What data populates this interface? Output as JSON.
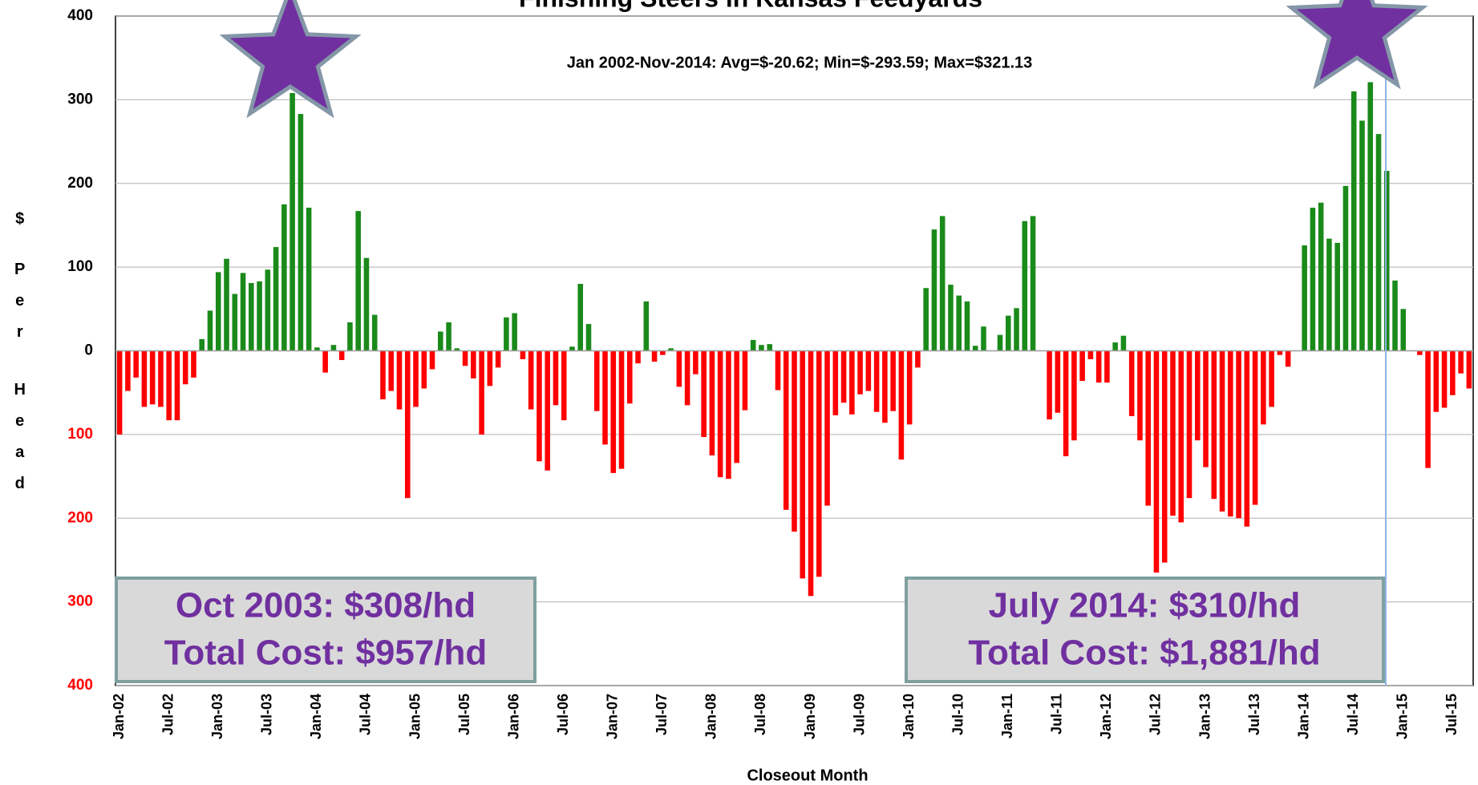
{
  "chart_data": {
    "type": "bar",
    "title": "Finishing Steers in Kansas Feedyards",
    "subtitle": "Jan 2002-Nov-2014:  Avg=$-20.62; Min=$-293.59; Max=$321.13",
    "xlabel": "Closeout Month",
    "ylabel": [
      "$",
      "Per",
      "Head"
    ],
    "annotations": [
      "Oct 2003: $308/hd",
      "Total Cost: $957/hd",
      "July 2014: $310/hd",
      "Total Cost: $1,881/hd"
    ],
    "categories": [
      "Jan-02",
      null,
      null,
      null,
      null,
      null,
      "Jul-02",
      null,
      null,
      null,
      null,
      null,
      "Jan-03",
      null,
      null,
      null,
      null,
      null,
      "Jul-03",
      null,
      null,
      null,
      null,
      null,
      "Jan-04",
      null,
      null,
      null,
      null,
      null,
      "Jul-04",
      null,
      null,
      null,
      null,
      null,
      "Jan-05",
      null,
      null,
      null,
      null,
      null,
      "Jul-05",
      null,
      null,
      null,
      null,
      null,
      "Jan-06",
      null,
      null,
      null,
      null,
      null,
      "Jul-06",
      null,
      null,
      null,
      null,
      null,
      "Jan-07",
      null,
      null,
      null,
      null,
      null,
      "Jul-07",
      null,
      null,
      null,
      null,
      null,
      "Jan-08",
      null,
      null,
      null,
      null,
      null,
      "Jul-08",
      null,
      null,
      null,
      null,
      null,
      "Jan-09",
      null,
      null,
      null,
      null,
      null,
      "Jul-09",
      null,
      null,
      null,
      null,
      null,
      "Jan-10",
      null,
      null,
      null,
      null,
      null,
      "Jul-10",
      null,
      null,
      null,
      null,
      null,
      "Jan-11",
      null,
      null,
      null,
      null,
      null,
      "Jul-11",
      null,
      null,
      null,
      null,
      null,
      "Jan-12",
      null,
      null,
      null,
      null,
      null,
      "Jul-12",
      null,
      null,
      null,
      null,
      null,
      "Jan-13",
      null,
      null,
      null,
      null,
      null,
      "Jul-13",
      null,
      null,
      null,
      null,
      null,
      "Jan-14",
      null,
      null,
      null,
      null,
      null,
      "Jul-14",
      null,
      null,
      null,
      null,
      null,
      "Jan-15",
      null,
      null,
      null,
      null,
      null,
      "Jul-15",
      null,
      null
    ],
    "values": [
      -100,
      -48,
      -32,
      -67,
      -64,
      -67,
      -83,
      -83,
      -40,
      -32,
      14,
      48,
      94,
      110,
      68,
      93,
      81,
      83,
      97,
      124,
      175,
      308,
      283,
      171,
      4,
      -26,
      7,
      -11,
      34,
      167,
      111,
      43,
      -58,
      -48,
      -70,
      -176,
      -67,
      -45,
      -22,
      23,
      34,
      3,
      -18,
      -33,
      -100,
      -42,
      -20,
      40,
      45,
      -10,
      -70,
      -132,
      -143,
      -65,
      -83,
      5,
      80,
      32,
      -72,
      -112,
      -146,
      -141,
      -63,
      -15,
      59,
      -13,
      -5,
      3,
      -43,
      -65,
      -28,
      -103,
      -125,
      -151,
      -153,
      -134,
      -71,
      13,
      7,
      8,
      -47,
      -190,
      -216,
      -272,
      -293,
      -270,
      -185,
      -77,
      -62,
      -76,
      -52,
      -48,
      -73,
      -86,
      -72,
      -130,
      -88,
      -20,
      75,
      145,
      161,
      79,
      66,
      59,
      6,
      29,
      0,
      19,
      42,
      51,
      155,
      161,
      0,
      -82,
      -74,
      -126,
      -107,
      -36,
      -10,
      -38,
      -38,
      10,
      18,
      -78,
      -107,
      -185,
      -265,
      -253,
      -197,
      -205,
      -176,
      -107,
      -139,
      -177,
      -192,
      -198,
      -200,
      -210,
      -184,
      -88,
      -67,
      -5,
      -19,
      0,
      126,
      171,
      177,
      134,
      129,
      197,
      310,
      275,
      321,
      259,
      215,
      84,
      50,
      0,
      -5,
      -140,
      -73,
      -68,
      -53,
      -27,
      -45
    ],
    "positive_color": "#1a8a1a",
    "negative_color": "#ff0000",
    "ylim": [
      -400,
      400
    ],
    "yticks": [
      {
        "value": -400,
        "label": "400"
      },
      {
        "value": -300,
        "label": "300"
      },
      {
        "value": -200,
        "label": "200"
      },
      {
        "value": -100,
        "label": "100"
      },
      0,
      100,
      200,
      300,
      400
    ],
    "grid": true
  }
}
